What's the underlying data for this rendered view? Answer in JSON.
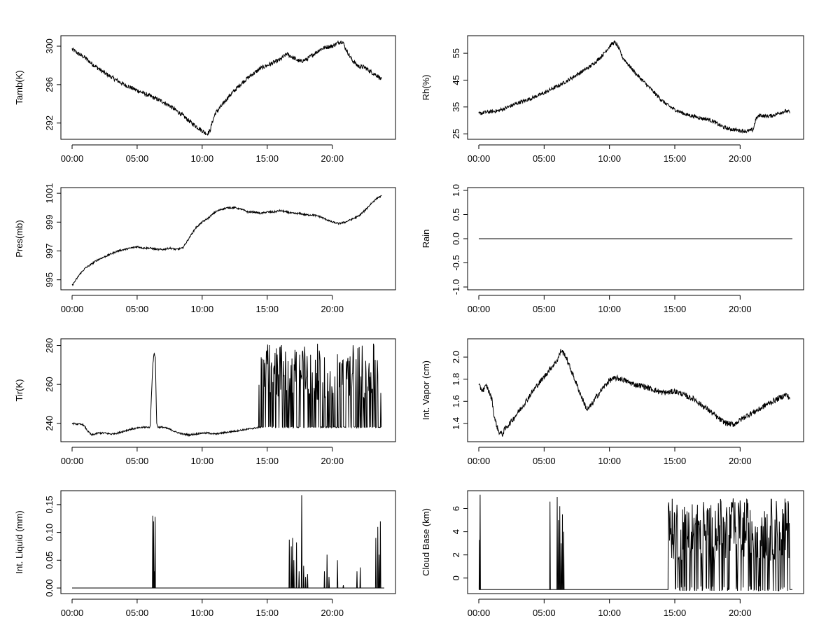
{
  "figure": {
    "background": "#ffffff",
    "line_color": "#000000",
    "x_tick_labels": [
      "00:00",
      "05:00",
      "10:00",
      "15:00",
      "20:00"
    ]
  },
  "chart_data": [
    {
      "id": "tamb",
      "type": "line",
      "title": "",
      "xlabel": "",
      "ylabel": "Tamb(K)",
      "xlim": [
        0,
        24
      ],
      "ylim": [
        290.6,
        300.8
      ],
      "y_ticks": [
        292,
        296,
        300
      ],
      "x": [
        0.0,
        0.5,
        1.0,
        1.5,
        2.0,
        2.5,
        3.0,
        3.5,
        4.0,
        4.5,
        5.0,
        5.5,
        6.0,
        6.5,
        7.0,
        7.5,
        8.0,
        8.5,
        9.0,
        9.5,
        10.0,
        10.2,
        10.4,
        10.6,
        10.8,
        11.0,
        11.5,
        12.0,
        12.5,
        13.0,
        13.5,
        14.0,
        14.5,
        15.0,
        15.5,
        16.0,
        16.5,
        17.0,
        17.5,
        18.0,
        18.5,
        19.0,
        19.5,
        20.0,
        20.5,
        20.8,
        21.0,
        21.5,
        22.0,
        22.5,
        23.0,
        23.5,
        23.8
      ],
      "y": [
        299.7,
        299.2,
        298.8,
        298.2,
        297.7,
        297.2,
        296.8,
        296.4,
        296.0,
        295.7,
        295.4,
        295.1,
        294.8,
        294.5,
        294.2,
        293.8,
        293.3,
        292.8,
        292.2,
        291.7,
        291.2,
        291.0,
        290.9,
        291.2,
        292.2,
        293.0,
        293.8,
        294.7,
        295.4,
        296.1,
        296.7,
        297.2,
        297.7,
        298.0,
        298.3,
        298.6,
        299.2,
        298.8,
        298.4,
        298.6,
        299.1,
        299.6,
        299.9,
        300.0,
        300.4,
        300.5,
        299.8,
        298.6,
        297.9,
        297.8,
        297.3,
        296.9,
        296.5
      ],
      "noise": 0.22
    },
    {
      "id": "rh",
      "type": "line",
      "title": "",
      "xlabel": "",
      "ylabel": "Rh(%)",
      "xlim": [
        0,
        24
      ],
      "ylim": [
        24,
        60.5
      ],
      "y_ticks": [
        25,
        35,
        45,
        55
      ],
      "x": [
        0.0,
        0.5,
        1.0,
        1.5,
        2.0,
        2.5,
        3.0,
        3.5,
        4.0,
        4.5,
        5.0,
        5.5,
        6.0,
        6.5,
        7.0,
        7.5,
        8.0,
        8.5,
        9.0,
        9.5,
        10.0,
        10.2,
        10.4,
        10.6,
        10.8,
        11.0,
        11.5,
        12.0,
        12.5,
        13.0,
        13.5,
        14.0,
        14.5,
        15.0,
        15.5,
        16.0,
        16.5,
        17.0,
        17.5,
        18.0,
        18.5,
        19.0,
        19.5,
        20.0,
        20.5,
        21.0,
        21.2,
        21.5,
        22.0,
        22.5,
        23.0,
        23.5,
        23.8
      ],
      "y": [
        32.5,
        33.0,
        33.3,
        33.6,
        34.5,
        35.5,
        36.5,
        37.3,
        38.2,
        39.2,
        40.2,
        41.5,
        42.7,
        44.0,
        45.5,
        47.0,
        48.5,
        50.0,
        52.0,
        54.5,
        57.5,
        58.6,
        59.0,
        58.0,
        55.8,
        53.5,
        50.5,
        47.5,
        45.0,
        42.5,
        40.0,
        37.5,
        35.5,
        34.0,
        33.0,
        32.0,
        31.5,
        30.8,
        30.5,
        29.5,
        28.0,
        27.0,
        26.6,
        26.2,
        26.0,
        26.5,
        30.5,
        32.0,
        31.5,
        31.8,
        32.8,
        33.5,
        33.0
      ],
      "noise": 0.7
    },
    {
      "id": "pres",
      "type": "line",
      "title": "",
      "xlabel": "",
      "ylabel": "Pres(mb)",
      "xlim": [
        0,
        24
      ],
      "ylim": [
        994.5,
        1001.2
      ],
      "y_ticks": [
        995,
        997,
        999,
        1001
      ],
      "x": [
        0.0,
        0.3,
        0.6,
        1.0,
        1.5,
        2.0,
        2.5,
        3.0,
        3.5,
        4.0,
        4.5,
        5.0,
        5.5,
        6.0,
        6.5,
        7.0,
        7.5,
        8.0,
        8.5,
        9.0,
        9.5,
        10.0,
        10.5,
        11.0,
        11.5,
        12.0,
        12.5,
        13.0,
        13.5,
        14.0,
        14.5,
        15.0,
        15.5,
        16.0,
        16.5,
        17.0,
        17.5,
        18.0,
        18.5,
        19.0,
        19.5,
        20.0,
        20.5,
        21.0,
        21.5,
        22.0,
        22.5,
        23.0,
        23.5,
        23.8
      ],
      "y": [
        994.6,
        995.0,
        995.4,
        995.8,
        996.1,
        996.4,
        996.6,
        996.8,
        997.0,
        997.1,
        997.2,
        997.3,
        997.2,
        997.2,
        997.1,
        997.1,
        997.2,
        997.1,
        997.2,
        997.9,
        998.6,
        999.0,
        999.3,
        999.7,
        999.9,
        1000.0,
        1000.0,
        999.9,
        999.7,
        999.7,
        999.6,
        999.7,
        999.7,
        999.8,
        999.7,
        999.6,
        999.6,
        999.5,
        999.5,
        999.4,
        999.2,
        999.0,
        998.9,
        999.0,
        999.2,
        999.4,
        999.8,
        1000.3,
        1000.7,
        1000.8
      ],
      "noise": 0.06
    },
    {
      "id": "rain",
      "type": "line",
      "title": "",
      "xlabel": "",
      "ylabel": "Rain",
      "xlim": [
        0,
        24
      ],
      "ylim": [
        -1.0,
        1.0
      ],
      "y_ticks": [
        -1.0,
        -0.5,
        0.0,
        0.5,
        1.0
      ],
      "x": [
        0,
        24
      ],
      "y": [
        0,
        0
      ],
      "noise": 0
    },
    {
      "id": "tir",
      "type": "line",
      "title": "",
      "xlabel": "",
      "ylabel": "Tir(K)",
      "xlim": [
        0,
        24
      ],
      "ylim": [
        232,
        282
      ],
      "y_ticks": [
        240,
        260,
        280
      ],
      "x": [
        0.0,
        0.5,
        0.8,
        1.0,
        1.2,
        1.5,
        2.0,
        2.5,
        3.0,
        3.5,
        4.0,
        4.5,
        5.0,
        5.5,
        5.8,
        6.0,
        6.2,
        6.3,
        6.4,
        6.5,
        6.6,
        7.0,
        7.5,
        8.0,
        8.5,
        9.0,
        9.5,
        10.0,
        10.5,
        11.0,
        11.5,
        12.0,
        12.5,
        13.0,
        13.5,
        14.0,
        14.5,
        15.0,
        16.0,
        17.0,
        18.0,
        19.0,
        20.0,
        21.0,
        22.0,
        23.0,
        23.5,
        23.8
      ],
      "y": [
        240,
        239.5,
        239.5,
        238,
        236,
        234,
        235,
        235,
        234.5,
        235,
        236,
        237,
        237.5,
        238,
        238,
        238,
        270,
        276,
        274,
        240,
        238,
        238,
        237,
        235.5,
        234.5,
        234,
        234.5,
        235,
        235,
        234.5,
        235,
        235.5,
        236,
        236.5,
        237,
        237.5,
        238,
        238,
        238,
        238,
        238,
        238,
        238,
        238,
        238,
        238,
        238,
        238
      ],
      "spikes": {
        "x_start": 14.3,
        "x_end": 23.8,
        "step": 0.1,
        "base": 238,
        "low": 252,
        "high": 281,
        "prob": 0.55
      },
      "noise": 0.4
    },
    {
      "id": "vapor",
      "type": "line",
      "title": "",
      "xlabel": "",
      "ylabel": "Int. Vapor (cm)",
      "xlim": [
        0,
        24
      ],
      "ylim": [
        1.26,
        2.14
      ],
      "y_ticks": [
        1.4,
        1.6,
        1.8,
        2.0
      ],
      "x": [
        0.0,
        0.3,
        0.6,
        0.8,
        1.0,
        1.2,
        1.5,
        1.8,
        2.0,
        2.5,
        3.0,
        3.5,
        4.0,
        4.5,
        5.0,
        5.5,
        6.0,
        6.3,
        6.6,
        7.0,
        7.5,
        8.0,
        8.3,
        8.7,
        9.0,
        9.5,
        10.0,
        10.5,
        11.0,
        11.5,
        12.0,
        12.5,
        13.0,
        13.5,
        14.0,
        14.5,
        15.0,
        15.5,
        16.0,
        16.5,
        17.0,
        17.5,
        18.0,
        18.5,
        19.0,
        19.5,
        20.0,
        20.5,
        21.0,
        21.5,
        22.0,
        22.5,
        23.0,
        23.5,
        23.8
      ],
      "y": [
        1.74,
        1.7,
        1.74,
        1.68,
        1.62,
        1.45,
        1.33,
        1.3,
        1.35,
        1.42,
        1.5,
        1.58,
        1.67,
        1.75,
        1.82,
        1.9,
        1.97,
        2.06,
        2.02,
        1.9,
        1.75,
        1.6,
        1.52,
        1.58,
        1.64,
        1.72,
        1.79,
        1.81,
        1.8,
        1.77,
        1.75,
        1.74,
        1.72,
        1.7,
        1.68,
        1.68,
        1.69,
        1.67,
        1.64,
        1.62,
        1.57,
        1.53,
        1.48,
        1.43,
        1.4,
        1.39,
        1.43,
        1.47,
        1.5,
        1.53,
        1.57,
        1.6,
        1.63,
        1.66,
        1.63
      ],
      "noise": 0.025
    },
    {
      "id": "liquid",
      "type": "line",
      "title": "",
      "xlabel": "",
      "ylabel": "Int. Liquid (mm)",
      "xlim": [
        0,
        24
      ],
      "ylim": [
        -0.005,
        0.17
      ],
      "y_ticks": [
        0.0,
        0.05,
        0.1,
        0.15
      ],
      "x": [
        0,
        24
      ],
      "y": [
        0,
        0
      ],
      "bursts": [
        {
          "x": 6.2,
          "h": 0.13
        },
        {
          "x": 6.26,
          "h": 0.12
        },
        {
          "x": 6.32,
          "h": 0.03
        },
        {
          "x": 6.38,
          "h": 0.128
        },
        {
          "x": 16.7,
          "h": 0.087
        },
        {
          "x": 16.85,
          "h": 0.075
        },
        {
          "x": 16.95,
          "h": 0.09
        },
        {
          "x": 17.05,
          "h": 0.05
        },
        {
          "x": 17.25,
          "h": 0.082
        },
        {
          "x": 17.45,
          "h": 0.03
        },
        {
          "x": 17.65,
          "h": 0.167
        },
        {
          "x": 17.8,
          "h": 0.04
        },
        {
          "x": 17.95,
          "h": 0.02
        },
        {
          "x": 18.1,
          "h": 0.025
        },
        {
          "x": 19.4,
          "h": 0.03
        },
        {
          "x": 19.6,
          "h": 0.06
        },
        {
          "x": 19.75,
          "h": 0.02
        },
        {
          "x": 20.4,
          "h": 0.05
        },
        {
          "x": 20.85,
          "h": 0.005
        },
        {
          "x": 21.9,
          "h": 0.03
        },
        {
          "x": 22.15,
          "h": 0.037
        },
        {
          "x": 23.35,
          "h": 0.09
        },
        {
          "x": 23.5,
          "h": 0.11
        },
        {
          "x": 23.6,
          "h": 0.06
        },
        {
          "x": 23.7,
          "h": 0.12
        }
      ]
    },
    {
      "id": "cloud",
      "type": "line",
      "title": "",
      "xlabel": "",
      "ylabel": "Cloud Base (km)",
      "xlim": [
        0,
        24
      ],
      "ylim": [
        -1.1,
        7.3
      ],
      "y_ticks": [
        0,
        2,
        4,
        6
      ],
      "x": [
        0,
        24
      ],
      "y": [
        -1,
        -1
      ],
      "bursts": [
        {
          "x": 0.05,
          "h": 3.3
        },
        {
          "x": 0.1,
          "h": 7.2
        },
        {
          "x": 5.45,
          "h": 6.6
        },
        {
          "x": 6.0,
          "h": 7.0
        },
        {
          "x": 6.1,
          "h": 5.0
        },
        {
          "x": 6.2,
          "h": 6.2
        },
        {
          "x": 6.3,
          "h": 3.0
        },
        {
          "x": 6.4,
          "h": 5.5
        },
        {
          "x": 6.5,
          "h": 4.0
        }
      ],
      "spikes": {
        "x_start": 14.5,
        "x_end": 23.8,
        "step": 0.1,
        "base": -1,
        "low": 1.5,
        "high": 6.9,
        "prob": 0.75
      }
    }
  ]
}
